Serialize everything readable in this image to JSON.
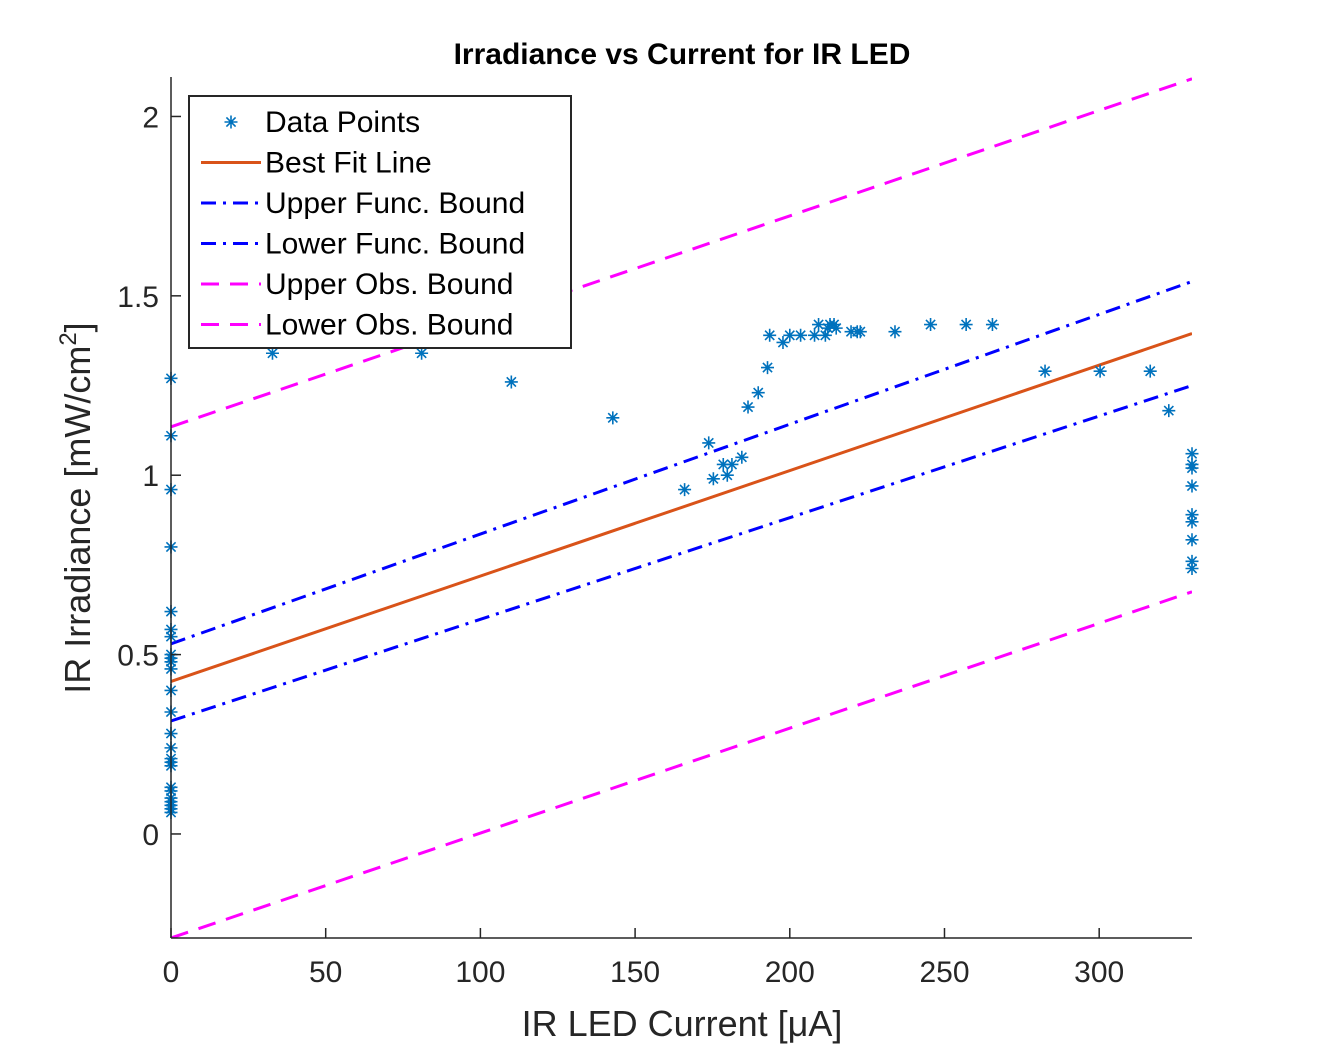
{
  "chart_data": {
    "type": "scatter",
    "title": "Irradiance vs Current for IR LED",
    "xlabel": "IR LED Current [μA]",
    "ylabel": "IR Irradiance [mW/cm²]",
    "ylabel_parts": {
      "main": "IR Irradiance [mW/cm",
      "sup": "2",
      "close": "]"
    },
    "xlim": [
      0,
      330
    ],
    "ylim": [
      -0.29,
      2.11
    ],
    "xticks": [
      0,
      50,
      100,
      150,
      200,
      250,
      300
    ],
    "yticks": [
      0,
      0.5,
      1,
      1.5,
      2
    ],
    "xtick_labels": [
      "0",
      "50",
      "100",
      "150",
      "200",
      "250",
      "300"
    ],
    "ytick_labels": [
      "0",
      "0.5",
      "1",
      "1.5",
      "2"
    ],
    "grid": false,
    "legend_position": "top-left",
    "series": [
      {
        "name": "Data Points",
        "kind": "markers",
        "marker": "asterisk",
        "color": "#0072BD",
        "points": [
          [
            0,
            1.27
          ],
          [
            0,
            1.11
          ],
          [
            0,
            0.96
          ],
          [
            0,
            0.8
          ],
          [
            0,
            0.62
          ],
          [
            0,
            0.57
          ],
          [
            0,
            0.55
          ],
          [
            0,
            0.5
          ],
          [
            0,
            0.49
          ],
          [
            0,
            0.48
          ],
          [
            0,
            0.46
          ],
          [
            0,
            0.4
          ],
          [
            0,
            0.34
          ],
          [
            0,
            0.28
          ],
          [
            0,
            0.24
          ],
          [
            0,
            0.21
          ],
          [
            0,
            0.2
          ],
          [
            0,
            0.19
          ],
          [
            0,
            0.13
          ],
          [
            0,
            0.12
          ],
          [
            0,
            0.1
          ],
          [
            0,
            0.09
          ],
          [
            0,
            0.08
          ],
          [
            0,
            0.07
          ],
          [
            0,
            0.06
          ],
          [
            32.8,
            1.34
          ],
          [
            81.0,
            1.34
          ],
          [
            110.0,
            1.26
          ],
          [
            142.8,
            1.16
          ],
          [
            166.0,
            0.96
          ],
          [
            173.8,
            1.09
          ],
          [
            175.3,
            0.99
          ],
          [
            178.5,
            1.03
          ],
          [
            179.8,
            1.0
          ],
          [
            181.3,
            1.03
          ],
          [
            184.5,
            1.05
          ],
          [
            186.5,
            1.19
          ],
          [
            189.8,
            1.23
          ],
          [
            192.8,
            1.3
          ],
          [
            193.5,
            1.39
          ],
          [
            197.8,
            1.37
          ],
          [
            200.0,
            1.39
          ],
          [
            203.5,
            1.39
          ],
          [
            208.0,
            1.39
          ],
          [
            209.3,
            1.42
          ],
          [
            211.5,
            1.39
          ],
          [
            212.3,
            1.41
          ],
          [
            213.0,
            1.42
          ],
          [
            214.3,
            1.42
          ],
          [
            215.0,
            1.41
          ],
          [
            219.8,
            1.4
          ],
          [
            221.8,
            1.4
          ],
          [
            222.8,
            1.4
          ],
          [
            234.0,
            1.4
          ],
          [
            245.5,
            1.42
          ],
          [
            257.0,
            1.42
          ],
          [
            265.5,
            1.42
          ],
          [
            282.5,
            1.29
          ],
          [
            300.3,
            1.29
          ],
          [
            316.5,
            1.29
          ],
          [
            322.5,
            1.18
          ],
          [
            330,
            1.06
          ],
          [
            330,
            1.03
          ],
          [
            330,
            1.02
          ],
          [
            330,
            0.97
          ],
          [
            330,
            0.89
          ],
          [
            330,
            0.87
          ],
          [
            330,
            0.82
          ],
          [
            330,
            0.76
          ],
          [
            330,
            0.74
          ]
        ]
      },
      {
        "name": "Best Fit Line",
        "kind": "line",
        "style": "solid",
        "color": "#D95319",
        "points": [
          [
            0,
            0.425
          ],
          [
            330,
            1.395
          ]
        ]
      },
      {
        "name": "Upper Func. Bound",
        "kind": "line",
        "style": "dashdot",
        "color": "#0000FF",
        "points": [
          [
            0,
            0.53
          ],
          [
            330,
            1.54
          ]
        ]
      },
      {
        "name": "Lower Func. Bound",
        "kind": "line",
        "style": "dashdot",
        "color": "#0000FF",
        "points": [
          [
            0,
            0.315
          ],
          [
            330,
            1.25
          ]
        ]
      },
      {
        "name": "Upper Obs. Bound",
        "kind": "line",
        "style": "dashed",
        "color": "#FF00FF",
        "points": [
          [
            0,
            1.135
          ],
          [
            330,
            2.105
          ]
        ]
      },
      {
        "name": "Lower Obs. Bound",
        "kind": "line",
        "style": "dashed",
        "color": "#FF00FF",
        "points": [
          [
            0,
            -0.29
          ],
          [
            330,
            0.675
          ]
        ]
      }
    ]
  }
}
